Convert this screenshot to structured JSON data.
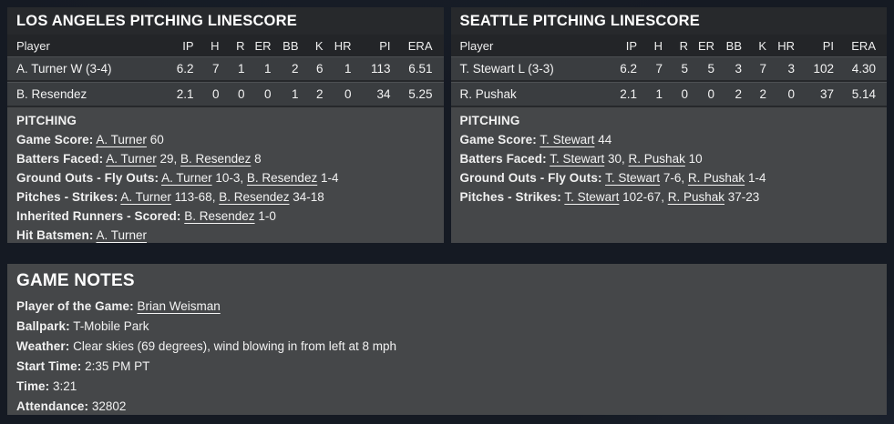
{
  "colors": {
    "page_background": "#151a23",
    "panel_body": "#454749",
    "title_bar": "#27292c",
    "table_header": "#232528",
    "table_row": "#3a3d40",
    "row_separator": "#26282b",
    "text": "#f1f1f1"
  },
  "left_panel": {
    "title": "LOS ANGELES PITCHING LINESCORE",
    "columns": {
      "player": "Player",
      "ip": "IP",
      "h": "H",
      "r": "R",
      "er": "ER",
      "bb": "BB",
      "k": "K",
      "hr": "HR",
      "pi": "PI",
      "era": "ERA"
    },
    "rows": [
      {
        "player": "A. Turner",
        "decision": "W (3-4)",
        "ip": "6.2",
        "h": "7",
        "r": "1",
        "er": "1",
        "bb": "2",
        "k": "6",
        "hr": "1",
        "pi": "113",
        "era": "6.51"
      },
      {
        "player": "B. Resendez",
        "decision": "",
        "ip": "2.1",
        "h": "0",
        "r": "0",
        "er": "0",
        "bb": "1",
        "k": "2",
        "hr": "0",
        "pi": "34",
        "era": "5.25"
      }
    ],
    "section_title": "PITCHING",
    "lines": [
      {
        "label": "Game Score:",
        "link1": "A. Turner",
        "text1": "60",
        "link2": "",
        "text2": ""
      },
      {
        "label": "Batters Faced:",
        "link1": "A. Turner",
        "text1": "29,",
        "link2": "B. Resendez",
        "text2": "8"
      },
      {
        "label": "Ground Outs - Fly Outs:",
        "link1": "A. Turner",
        "text1": "10-3,",
        "link2": "B. Resendez",
        "text2": "1-4"
      },
      {
        "label": "Pitches - Strikes:",
        "link1": "A. Turner",
        "text1": "113-68,",
        "link2": "B. Resendez",
        "text2": "34-18"
      },
      {
        "label": "Inherited Runners - Scored:",
        "link1": "B. Resendez",
        "text1": "1-0",
        "link2": "",
        "text2": ""
      },
      {
        "label": "Hit Batsmen:",
        "link1": "A. Turner",
        "text1": "",
        "link2": "",
        "text2": ""
      }
    ]
  },
  "right_panel": {
    "title": "SEATTLE PITCHING LINESCORE",
    "columns": {
      "player": "Player",
      "ip": "IP",
      "h": "H",
      "r": "R",
      "er": "ER",
      "bb": "BB",
      "k": "K",
      "hr": "HR",
      "pi": "PI",
      "era": "ERA"
    },
    "rows": [
      {
        "player": "T. Stewart",
        "decision": "L (3-3)",
        "ip": "6.2",
        "h": "7",
        "r": "5",
        "er": "5",
        "bb": "3",
        "k": "7",
        "hr": "3",
        "pi": "102",
        "era": "4.30"
      },
      {
        "player": "R. Pushak",
        "decision": "",
        "ip": "2.1",
        "h": "1",
        "r": "0",
        "er": "0",
        "bb": "2",
        "k": "2",
        "hr": "0",
        "pi": "37",
        "era": "5.14"
      }
    ],
    "section_title": "PITCHING",
    "lines": [
      {
        "label": "Game Score:",
        "link1": "T. Stewart",
        "text1": "44",
        "link2": "",
        "text2": ""
      },
      {
        "label": "Batters Faced:",
        "link1": "T. Stewart",
        "text1": "30,",
        "link2": "R. Pushak",
        "text2": "10"
      },
      {
        "label": "Ground Outs - Fly Outs:",
        "link1": "T. Stewart",
        "text1": "7-6,",
        "link2": "R. Pushak",
        "text2": "1-4"
      },
      {
        "label": "Pitches - Strikes:",
        "link1": "T. Stewart",
        "text1": "102-67,",
        "link2": "R. Pushak",
        "text2": "37-23"
      }
    ]
  },
  "game_notes": {
    "title": "GAME NOTES",
    "lines": [
      {
        "label": "Player of the Game:",
        "link": "Brian Weisman",
        "text": ""
      },
      {
        "label": "Ballpark:",
        "link": "",
        "text": "T-Mobile Park"
      },
      {
        "label": "Weather:",
        "link": "",
        "text": "Clear skies (69 degrees), wind blowing in from left at 8 mph"
      },
      {
        "label": "Start Time:",
        "link": "",
        "text": "2:35 PM PT"
      },
      {
        "label": "Time:",
        "link": "",
        "text": "3:21"
      },
      {
        "label": "Attendance:",
        "link": "",
        "text": "32802"
      }
    ]
  }
}
